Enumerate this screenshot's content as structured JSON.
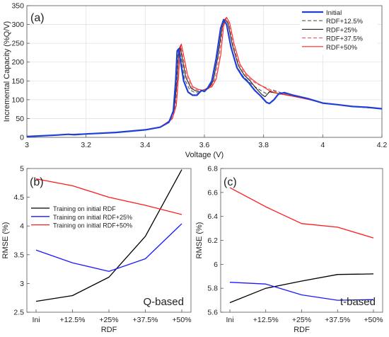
{
  "chart_data": [
    {
      "type": "line",
      "panel_label": "(a)",
      "xlabel": "Voltage (V)",
      "ylabel": "Incremental Capacity (%Q/V)",
      "xlim": [
        3,
        4.2
      ],
      "ylim": [
        0,
        350
      ],
      "xticks": [
        3,
        3.2,
        3.4,
        3.6,
        3.8,
        4,
        4.2
      ],
      "xtick_labels": [
        "3",
        "3.2",
        "3.4",
        "3.6",
        "3.8",
        "4",
        "4.2"
      ],
      "yticks": [
        0,
        50,
        100,
        150,
        200,
        250,
        300,
        350
      ],
      "ytick_labels": [
        "0",
        "50",
        "100",
        "150",
        "200",
        "250",
        "300",
        "350"
      ],
      "grid": true,
      "legend": "top-right",
      "series": [
        {
          "name": "Initial",
          "color": "#1f3fd6",
          "dash": "solid",
          "width": 2.2,
          "points": [
            [
              3,
              2
            ],
            [
              3.1,
              6
            ],
            [
              3.14,
              8
            ],
            [
              3.16,
              7
            ],
            [
              3.2,
              9
            ],
            [
              3.3,
              13
            ],
            [
              3.4,
              20
            ],
            [
              3.45,
              27
            ],
            [
              3.48,
              40
            ],
            [
              3.495,
              70
            ],
            [
              3.503,
              150
            ],
            [
              3.508,
              230
            ],
            [
              3.513,
              235
            ],
            [
              3.52,
              200
            ],
            [
              3.53,
              150
            ],
            [
              3.545,
              120
            ],
            [
              3.56,
              112
            ],
            [
              3.575,
              112
            ],
            [
              3.59,
              125
            ],
            [
              3.6,
              122
            ],
            [
              3.61,
              130
            ],
            [
              3.625,
              150
            ],
            [
              3.64,
              210
            ],
            [
              3.655,
              290
            ],
            [
              3.665,
              313
            ],
            [
              3.675,
              300
            ],
            [
              3.69,
              240
            ],
            [
              3.71,
              185
            ],
            [
              3.73,
              160
            ],
            [
              3.75,
              145
            ],
            [
              3.77,
              125
            ],
            [
              3.79,
              110
            ],
            [
              3.81,
              93
            ],
            [
              3.82,
              90
            ],
            [
              3.835,
              100
            ],
            [
              3.85,
              115
            ],
            [
              3.87,
              119
            ],
            [
              3.9,
              112
            ],
            [
              3.95,
              103
            ],
            [
              4,
              91
            ],
            [
              4.05,
              87
            ],
            [
              4.1,
              82
            ],
            [
              4.15,
              80
            ],
            [
              4.2,
              76
            ]
          ]
        },
        {
          "name": "RDF+12.5%",
          "color": "#555555",
          "dash": "5,3",
          "width": 1.1,
          "points": [
            [
              3,
              2
            ],
            [
              3.1,
              6
            ],
            [
              3.14,
              8
            ],
            [
              3.2,
              9
            ],
            [
              3.3,
              13
            ],
            [
              3.4,
              20
            ],
            [
              3.45,
              27
            ],
            [
              3.48,
              40
            ],
            [
              3.495,
              65
            ],
            [
              3.505,
              140
            ],
            [
              3.51,
              220
            ],
            [
              3.515,
              240
            ],
            [
              3.522,
              205
            ],
            [
              3.533,
              155
            ],
            [
              3.55,
              127
            ],
            [
              3.565,
              120
            ],
            [
              3.58,
              118
            ],
            [
              3.595,
              126
            ],
            [
              3.61,
              128
            ],
            [
              3.625,
              148
            ],
            [
              3.64,
              210
            ],
            [
              3.655,
              288
            ],
            [
              3.665,
              312
            ],
            [
              3.675,
              300
            ],
            [
              3.69,
              242
            ],
            [
              3.71,
              188
            ],
            [
              3.73,
              163
            ],
            [
              3.75,
              148
            ],
            [
              3.77,
              135
            ],
            [
              3.79,
              125
            ],
            [
              3.81,
              116
            ],
            [
              3.83,
              126
            ],
            [
              3.85,
              121
            ],
            [
              3.87,
              116
            ],
            [
              3.9,
              110
            ],
            [
              3.95,
              102
            ],
            [
              4,
              91
            ],
            [
              4.05,
              87
            ],
            [
              4.1,
              82
            ],
            [
              4.15,
              79
            ],
            [
              4.2,
              76
            ]
          ]
        },
        {
          "name": "RDF+25%",
          "color": "#222222",
          "dash": "solid",
          "width": 1.1,
          "points": [
            [
              3,
              2
            ],
            [
              3.1,
              6
            ],
            [
              3.14,
              8
            ],
            [
              3.2,
              9
            ],
            [
              3.3,
              13
            ],
            [
              3.4,
              20
            ],
            [
              3.45,
              27
            ],
            [
              3.485,
              45
            ],
            [
              3.498,
              75
            ],
            [
              3.508,
              150
            ],
            [
              3.513,
              225
            ],
            [
              3.518,
              243
            ],
            [
              3.525,
              210
            ],
            [
              3.537,
              160
            ],
            [
              3.555,
              130
            ],
            [
              3.57,
              124
            ],
            [
              3.585,
              120
            ],
            [
              3.6,
              127
            ],
            [
              3.615,
              130
            ],
            [
              3.63,
              150
            ],
            [
              3.645,
              212
            ],
            [
              3.66,
              292
            ],
            [
              3.67,
              315
            ],
            [
              3.68,
              302
            ],
            [
              3.695,
              245
            ],
            [
              3.715,
              190
            ],
            [
              3.735,
              165
            ],
            [
              3.755,
              150
            ],
            [
              3.775,
              130
            ],
            [
              3.795,
              113
            ],
            [
              3.805,
              108
            ],
            [
              3.82,
              121
            ],
            [
              3.84,
              118
            ],
            [
              3.86,
              115
            ],
            [
              3.9,
              110
            ],
            [
              3.95,
              102
            ],
            [
              4,
              91
            ],
            [
              4.05,
              87
            ],
            [
              4.1,
              82
            ],
            [
              4.15,
              79
            ],
            [
              4.2,
              76
            ]
          ]
        },
        {
          "name": "RDF+37.5%",
          "color": "#e35a5a",
          "dash": "5,3",
          "width": 1.1,
          "points": [
            [
              3,
              2
            ],
            [
              3.1,
              6
            ],
            [
              3.14,
              8
            ],
            [
              3.2,
              9
            ],
            [
              3.3,
              13
            ],
            [
              3.4,
              20
            ],
            [
              3.45,
              27
            ],
            [
              3.49,
              48
            ],
            [
              3.502,
              80
            ],
            [
              3.51,
              160
            ],
            [
              3.515,
              230
            ],
            [
              3.52,
              246
            ],
            [
              3.527,
              215
            ],
            [
              3.54,
              163
            ],
            [
              3.558,
              132
            ],
            [
              3.575,
              126
            ],
            [
              3.59,
              123
            ],
            [
              3.605,
              129
            ],
            [
              3.62,
              132
            ],
            [
              3.635,
              152
            ],
            [
              3.65,
              215
            ],
            [
              3.662,
              294
            ],
            [
              3.672,
              317
            ],
            [
              3.682,
              304
            ],
            [
              3.697,
              248
            ],
            [
              3.717,
              193
            ],
            [
              3.737,
              168
            ],
            [
              3.757,
              153
            ],
            [
              3.777,
              142
            ],
            [
              3.797,
              136
            ],
            [
              3.815,
              130
            ],
            [
              3.83,
              124
            ],
            [
              3.85,
              118
            ],
            [
              3.87,
              115
            ],
            [
              3.9,
              110
            ],
            [
              3.95,
              102
            ],
            [
              4,
              91
            ],
            [
              4.05,
              87
            ],
            [
              4.1,
              82
            ],
            [
              4.15,
              79
            ],
            [
              4.2,
              76
            ]
          ]
        },
        {
          "name": "RDF+50%",
          "color": "#ff2222",
          "dash": "solid",
          "width": 1.1,
          "points": [
            [
              3,
              2
            ],
            [
              3.1,
              6
            ],
            [
              3.14,
              8
            ],
            [
              3.2,
              9
            ],
            [
              3.3,
              13
            ],
            [
              3.4,
              20
            ],
            [
              3.45,
              27
            ],
            [
              3.492,
              50
            ],
            [
              3.505,
              85
            ],
            [
              3.513,
              165
            ],
            [
              3.518,
              235
            ],
            [
              3.522,
              248
            ],
            [
              3.53,
              218
            ],
            [
              3.543,
              166
            ],
            [
              3.56,
              135
            ],
            [
              3.578,
              128
            ],
            [
              3.595,
              125
            ],
            [
              3.61,
              131
            ],
            [
              3.625,
              134
            ],
            [
              3.64,
              155
            ],
            [
              3.655,
              218
            ],
            [
              3.665,
              296
            ],
            [
              3.675,
              319
            ],
            [
              3.685,
              305
            ],
            [
              3.7,
              250
            ],
            [
              3.72,
              195
            ],
            [
              3.74,
              170
            ],
            [
              3.76,
              155
            ],
            [
              3.78,
              143
            ],
            [
              3.8,
              134
            ],
            [
              3.82,
              124
            ],
            [
              3.84,
              118
            ],
            [
              3.86,
              115
            ],
            [
              3.9,
              109
            ],
            [
              3.95,
              101
            ],
            [
              4,
              91
            ],
            [
              4.05,
              87
            ],
            [
              4.1,
              82
            ],
            [
              4.15,
              79
            ],
            [
              4.2,
              76
            ]
          ]
        }
      ]
    },
    {
      "type": "line",
      "panel_label": "(b)",
      "corner_text": "Q-based",
      "xlabel": "RDF",
      "ylabel": "RMSE (%)",
      "categories": [
        "Ini",
        "+12.5%",
        "+25%",
        "+37.5%",
        "+50%"
      ],
      "ylim": [
        2.5,
        5
      ],
      "yticks": [
        2.5,
        3,
        3.5,
        4,
        4.5,
        5
      ],
      "ytick_labels": [
        "2.5",
        "3",
        "3.5",
        "4",
        "4.5",
        "5"
      ],
      "grid": false,
      "legend": "center-left",
      "series": [
        {
          "name": "Training on initial RDF",
          "color": "#000000",
          "values": [
            2.69,
            2.79,
            3.11,
            3.82,
            4.98
          ]
        },
        {
          "name": "Training on initial RDF+25%",
          "color": "#1a1aff",
          "values": [
            3.58,
            3.36,
            3.21,
            3.43,
            4.04
          ]
        },
        {
          "name": "Training on initial RDF+50%",
          "color": "#ff1a1a",
          "values": [
            4.82,
            4.7,
            4.5,
            4.36,
            4.2
          ]
        }
      ]
    },
    {
      "type": "line",
      "panel_label": "(c)",
      "corner_text": "t-based",
      "xlabel": "RDF",
      "ylabel": "RMSE (%)",
      "categories": [
        "Ini",
        "+12.5%",
        "+25%",
        "+37.5%",
        "+50%"
      ],
      "ylim": [
        5.6,
        6.8
      ],
      "yticks": [
        5.6,
        5.8,
        6,
        6.2,
        6.4,
        6.6,
        6.8
      ],
      "ytick_labels": [
        "5.6",
        "5.8",
        "6",
        "6.2",
        "6.4",
        "6.6",
        "6.8"
      ],
      "grid": false,
      "series": [
        {
          "color": "#000000",
          "values": [
            5.68,
            5.8,
            5.86,
            5.915,
            5.92
          ]
        },
        {
          "color": "#1a1aff",
          "values": [
            5.85,
            5.835,
            5.745,
            5.7,
            5.705
          ]
        },
        {
          "color": "#ff1a1a",
          "values": [
            6.64,
            6.48,
            6.34,
            6.31,
            6.22
          ]
        }
      ]
    }
  ]
}
